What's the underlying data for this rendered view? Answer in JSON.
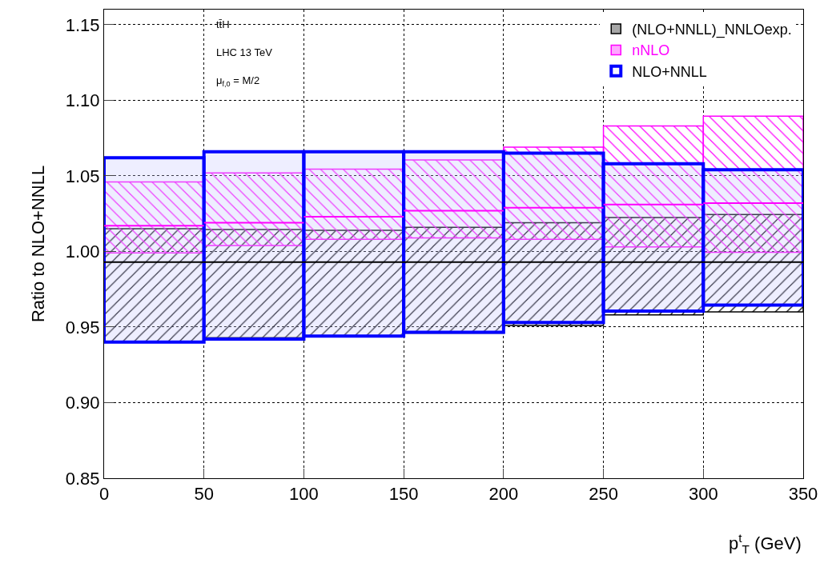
{
  "chart_data": {
    "type": "bar",
    "xlabel": "p$^{t}$$_{T}$ (GeV)",
    "ylabel": "Ratio to NLO+NNLL",
    "x": [
      25,
      75,
      125,
      175,
      225,
      275,
      325
    ],
    "series": [
      {
        "name": "(NLO+NNLL)_NNLOexp.",
        "color": "#000000",
        "base": [
          0.94,
          0.943,
          0.944,
          0.946,
          0.951,
          0.958,
          0.96
        ],
        "values": [
          0.075,
          0.0715,
          0.07,
          0.07,
          0.068,
          0.0645,
          0.0645
        ]
      },
      {
        "name": "nNLO",
        "color": "#ff00ff",
        "base": [
          0.999,
          1.004,
          1.008,
          1.009,
          1.008,
          1.003,
          0.9995
        ],
        "values": [
          0.047,
          0.048,
          0.0465,
          0.0515,
          0.061,
          0.08,
          0.09
        ]
      },
      {
        "name": "NLO+NNLL",
        "color": "#0000ff",
        "base": [
          0.94,
          0.942,
          0.944,
          0.9465,
          0.953,
          0.9605,
          0.9645
        ],
        "values": [
          0.122,
          0.124,
          0.122,
          0.1195,
          0.112,
          0.0975,
          0.0895
        ]
      },
      {
        "type": "line",
        "color": "#000000",
        "x": [
          0,
          50,
          null,
          50,
          100,
          null,
          100,
          150,
          null,
          150,
          200,
          null,
          200,
          250,
          null,
          250,
          300,
          null,
          300,
          350
        ],
        "values": [
          0.993,
          0.993,
          null,
          0.993,
          0.993,
          null,
          0.993,
          0.993,
          null,
          0.993,
          0.993,
          null,
          0.993,
          0.993,
          null,
          0.993,
          0.993,
          null,
          0.993,
          0.993
        ]
      },
      {
        "type": "line",
        "color": "#ff00ff",
        "x": [
          0,
          50,
          null,
          50,
          100,
          null,
          100,
          150,
          null,
          150,
          200,
          null,
          200,
          250,
          null,
          250,
          300,
          null,
          300,
          350
        ],
        "values": [
          1.017,
          1.017,
          null,
          1.019,
          1.019,
          null,
          1.023,
          1.023,
          null,
          1.027,
          1.027,
          null,
          1.029,
          1.029,
          null,
          1.031,
          1.031,
          null,
          1.032,
          1.032
        ]
      }
    ],
    "xlim": [
      0,
      350
    ],
    "xticks": [
      0,
      50,
      100,
      150,
      200,
      250,
      300,
      350
    ],
    "ylim": [
      0.85,
      1.16
    ],
    "yticks": [
      0.85,
      {
        "value": 0.9,
        "label": "0.90"
      },
      0.95,
      {
        "value": 1.0,
        "label": "1.00"
      },
      1.05,
      {
        "value": 1.1,
        "label": "1.10"
      },
      1.15
    ],
    "annotations": [
      "tt̄H",
      "LHC 13 TeV",
      "μ$_{f,0}$ = M/2"
    ],
    "grid": true,
    "legend": "top right"
  }
}
